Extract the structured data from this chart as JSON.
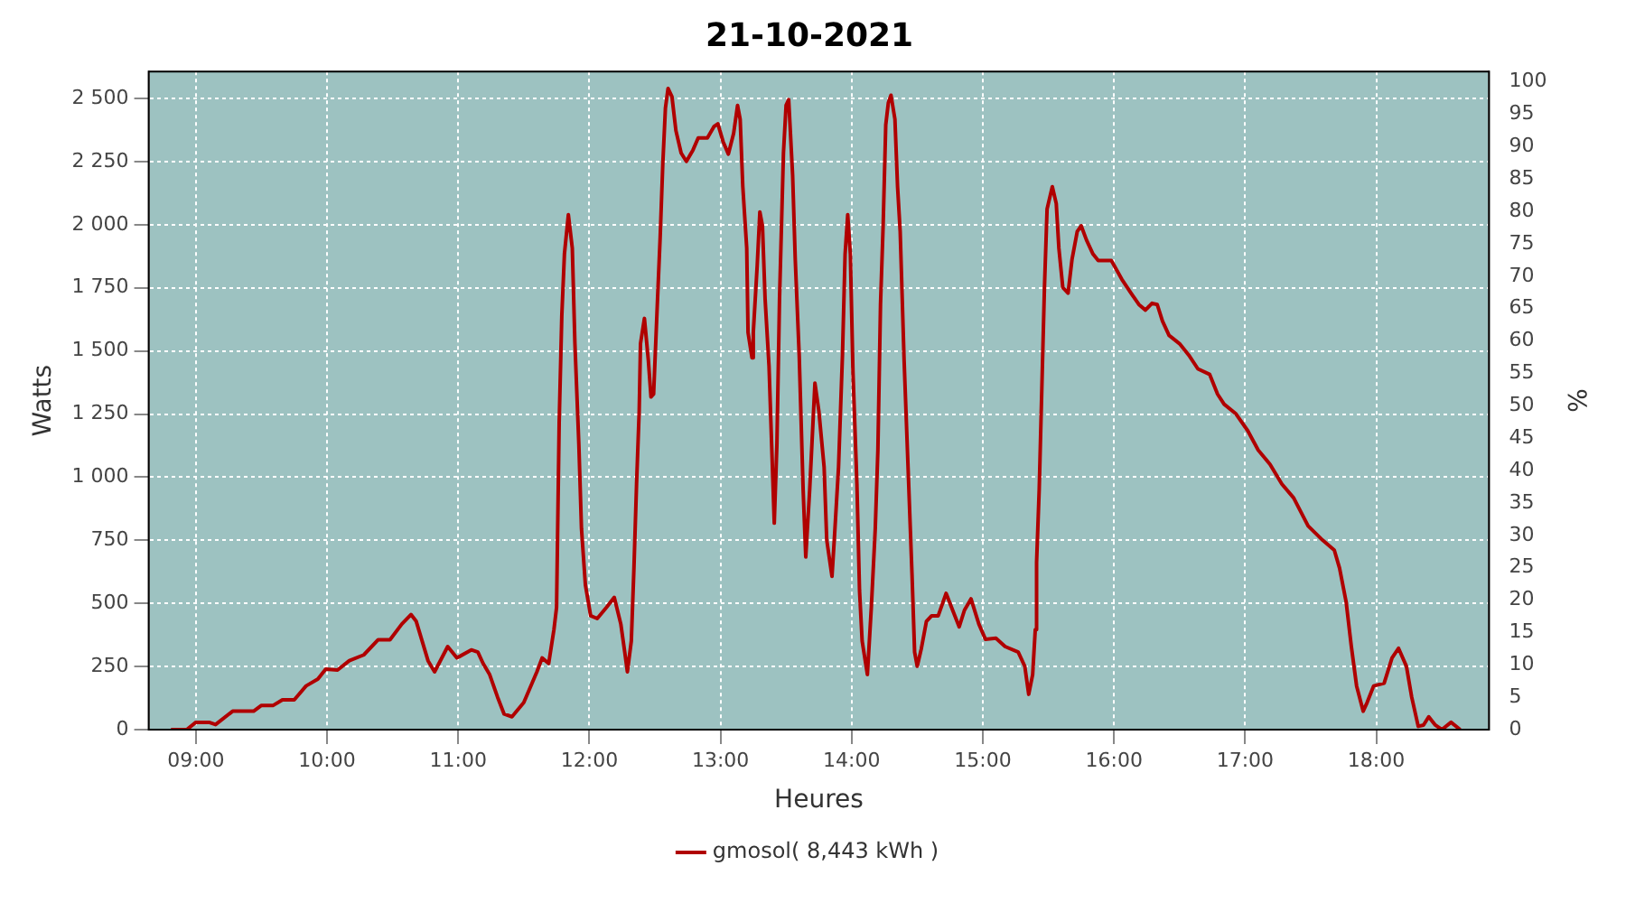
{
  "chart_data": {
    "type": "line",
    "title": "21-10-2021",
    "xlabel": "Heures",
    "ylabel": "Watts",
    "y2label": "%",
    "series": [
      {
        "name": "gmosol( 8,443 kWh )",
        "color": "#b00000",
        "x": [
          8.81,
          8.93,
          9.0,
          9.1,
          9.15,
          9.28,
          9.44,
          9.5,
          9.59,
          9.66,
          9.75,
          9.84,
          9.93,
          9.99,
          10.08,
          10.17,
          10.28,
          10.39,
          10.48,
          10.57,
          10.64,
          10.68,
          10.77,
          10.82,
          10.92,
          10.99,
          11.1,
          11.15,
          11.19,
          11.24,
          11.3,
          11.35,
          11.41,
          11.5,
          11.6,
          11.64,
          11.69,
          11.73,
          11.75,
          11.77,
          11.79,
          11.81,
          11.84,
          11.87,
          11.89,
          11.92,
          11.94,
          11.97,
          12.01,
          12.06,
          12.13,
          12.19,
          12.24,
          12.27,
          12.29,
          12.32,
          12.34,
          12.36,
          12.38,
          12.39,
          12.42,
          12.45,
          12.47,
          12.49,
          12.52,
          12.54,
          12.56,
          12.58,
          12.6,
          12.63,
          12.66,
          12.7,
          12.74,
          12.79,
          12.83,
          12.9,
          12.95,
          12.98,
          13.02,
          13.06,
          13.1,
          13.13,
          13.15,
          13.17,
          13.2,
          13.21,
          13.24,
          13.25,
          13.28,
          13.3,
          13.32,
          13.34,
          13.37,
          13.39,
          13.41,
          13.43,
          13.45,
          13.48,
          13.5,
          13.52,
          13.55,
          13.57,
          13.6,
          13.63,
          13.65,
          13.68,
          13.72,
          13.75,
          13.79,
          13.81,
          13.85,
          13.87,
          13.9,
          13.93,
          13.95,
          13.97,
          13.99,
          14.01,
          14.04,
          14.06,
          14.08,
          14.12,
          14.15,
          14.18,
          14.2,
          14.22,
          14.24,
          14.26,
          14.28,
          14.3,
          14.33,
          14.35,
          14.37,
          14.4,
          14.43,
          14.46,
          14.48,
          14.5,
          14.53,
          14.57,
          14.61,
          14.66,
          14.72,
          14.77,
          14.82,
          14.86,
          14.91,
          14.97,
          15.02,
          15.1,
          15.17,
          15.27,
          15.32,
          15.35,
          15.38,
          15.4,
          15.41,
          15.43,
          15.45,
          15.47,
          15.49,
          15.53,
          15.56,
          15.58,
          15.61,
          15.65,
          15.68,
          15.72,
          15.75,
          15.79,
          15.84,
          15.88,
          15.98,
          16.06,
          16.13,
          16.19,
          16.24,
          16.29,
          16.33,
          16.37,
          16.42,
          16.5,
          16.57,
          16.64,
          16.73,
          16.79,
          16.84,
          16.93,
          17.02,
          17.1,
          17.19,
          17.28,
          17.37,
          17.48,
          17.59,
          17.68,
          17.72,
          17.77,
          17.81,
          17.85,
          17.9,
          17.93,
          17.98,
          18.06,
          18.12,
          18.17,
          18.23,
          18.27,
          18.32,
          18.36,
          18.4,
          18.45,
          18.5,
          18.57,
          18.64
        ],
        "values": [
          0,
          0,
          29,
          29,
          20,
          73,
          73,
          96,
          96,
          118,
          118,
          173,
          200,
          240,
          236,
          273,
          296,
          356,
          356,
          418,
          456,
          429,
          273,
          229,
          329,
          284,
          316,
          307,
          262,
          218,
          129,
          62,
          51,
          107,
          229,
          284,
          262,
          396,
          484,
          1218,
          1640,
          1884,
          2040,
          1907,
          1529,
          1129,
          796,
          573,
          451,
          440,
          484,
          524,
          418,
          307,
          229,
          351,
          640,
          973,
          1262,
          1529,
          1629,
          1462,
          1318,
          1329,
          1707,
          1951,
          2240,
          2462,
          2540,
          2507,
          2373,
          2284,
          2251,
          2296,
          2344,
          2344,
          2389,
          2400,
          2329,
          2280,
          2362,
          2473,
          2418,
          2151,
          1907,
          1573,
          1473,
          1573,
          1840,
          2051,
          1996,
          1707,
          1440,
          1129,
          818,
          1129,
          1707,
          2284,
          2473,
          2496,
          2196,
          1862,
          1484,
          951,
          684,
          951,
          1373,
          1262,
          1040,
          751,
          607,
          773,
          1040,
          1484,
          1884,
          2040,
          1884,
          1418,
          973,
          551,
          351,
          218,
          484,
          796,
          1107,
          1684,
          1996,
          2396,
          2484,
          2513,
          2418,
          2151,
          1973,
          1462,
          1040,
          618,
          307,
          251,
          318,
          429,
          451,
          451,
          540,
          473,
          407,
          473,
          518,
          418,
          358,
          362,
          329,
          307,
          251,
          140,
          218,
          396,
          662,
          951,
          1351,
          1751,
          2062,
          2151,
          2084,
          1907,
          1751,
          1729,
          1862,
          1973,
          1996,
          1940,
          1884,
          1858,
          1858,
          1784,
          1729,
          1684,
          1662,
          1689,
          1684,
          1618,
          1562,
          1529,
          1484,
          1429,
          1407,
          1329,
          1289,
          1251,
          1184,
          1107,
          1051,
          973,
          918,
          807,
          751,
          711,
          640,
          507,
          329,
          173,
          73,
          107,
          173,
          184,
          284,
          322,
          251,
          129,
          13,
          18,
          51,
          18,
          0,
          29,
          0
        ]
      }
    ],
    "xlim": [
      8.64,
      18.86
    ],
    "xticks": [
      {
        "value": 9,
        "label": "09:00"
      },
      {
        "value": 10,
        "label": "10:00"
      },
      {
        "value": 11,
        "label": "11:00"
      },
      {
        "value": 12,
        "label": "12:00"
      },
      {
        "value": 13,
        "label": "13:00"
      },
      {
        "value": 14,
        "label": "14:00"
      },
      {
        "value": 15,
        "label": "15:00"
      },
      {
        "value": 16,
        "label": "16:00"
      },
      {
        "value": 17,
        "label": "17:00"
      },
      {
        "value": 18,
        "label": "18:00"
      }
    ],
    "ylim": [
      0,
      2607
    ],
    "yticks": [
      0,
      250,
      500,
      750,
      {
        "value": 1000,
        "label": "1 000"
      },
      {
        "value": 1250,
        "label": "1 250"
      },
      {
        "value": 1500,
        "label": "1 500"
      },
      {
        "value": 1750,
        "label": "1 750"
      },
      {
        "value": 2000,
        "label": "2 000"
      },
      {
        "value": 2250,
        "label": "2 250"
      },
      {
        "value": 2500,
        "label": "2 500"
      }
    ],
    "y2lim": [
      0,
      101.6
    ],
    "y2ticks": [
      0,
      5,
      10,
      15,
      20,
      25,
      30,
      35,
      40,
      45,
      50,
      55,
      60,
      65,
      70,
      75,
      80,
      85,
      90,
      95,
      100
    ],
    "grid": true,
    "legend": "bottom",
    "marker": "none",
    "line_style": "solid"
  }
}
